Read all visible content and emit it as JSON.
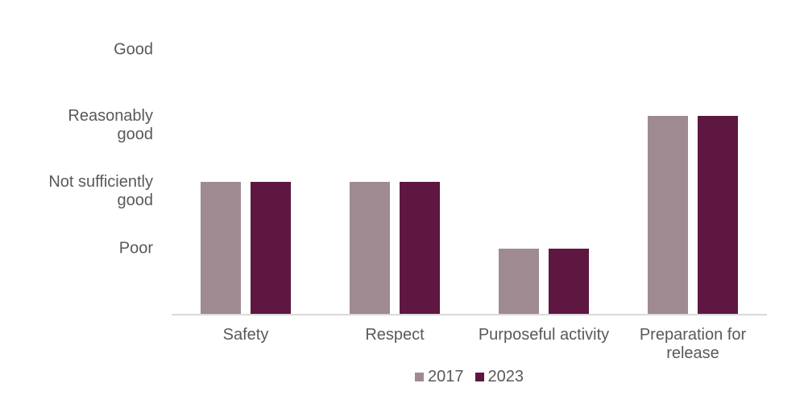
{
  "chart_data": {
    "type": "bar",
    "categories": [
      "Safety",
      "Respect",
      "Purposeful activity",
      "Preparation for release"
    ],
    "series": [
      {
        "name": "2017",
        "color": "#a08a92",
        "values": [
          2,
          2,
          1,
          3
        ]
      },
      {
        "name": "2023",
        "color": "#5e1741",
        "values": [
          2,
          2,
          1,
          3
        ]
      }
    ],
    "y_ticks": [
      {
        "value": 4,
        "label": "Good"
      },
      {
        "value": 3,
        "label": "Reasonably\ngood"
      },
      {
        "value": 2,
        "label": "Not sufficiently\ngood"
      },
      {
        "value": 1,
        "label": "Poor"
      }
    ],
    "value_labels": {
      "1": "Poor",
      "2": "Not sufficiently good",
      "3": "Reasonably good",
      "4": "Good"
    },
    "ylim": [
      0,
      4.45
    ],
    "title": "",
    "xlabel": "",
    "ylabel": "",
    "grid": false,
    "legend_position": "bottom"
  },
  "colors": {
    "text": "#595959",
    "axis_line": "#d9d9d9",
    "background": "#ffffff"
  }
}
